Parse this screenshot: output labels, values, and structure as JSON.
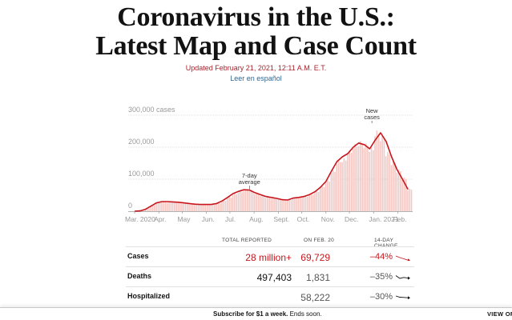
{
  "headline": {
    "line1": "Coronavirus in the U.S.:",
    "line2": "Latest Map and Case Count"
  },
  "updated": "Updated February 21, 2021, 12:11 A.M. E.T.",
  "spanish_link": "Leer en español",
  "colors": {
    "accent_red": "#c7161d",
    "bar_fill": "#f4c7c3",
    "link_blue": "#326891"
  },
  "chart_data": {
    "type": "bar",
    "title": "",
    "ylabel": "",
    "ylim": [
      0,
      300000
    ],
    "yticks": [
      "300,000 cases",
      "200,000",
      "100,000",
      "0"
    ],
    "ytick_values": [
      300000,
      200000,
      100000,
      0
    ],
    "xticks": [
      "Mar. 2020",
      "Apr.",
      "May",
      "Jun.",
      "Jul.",
      "Aug.",
      "Sept.",
      "Oct.",
      "Nov.",
      "Dec.",
      "Jan. 2021",
      "Feb."
    ],
    "grid": true,
    "annotations": [
      {
        "text_lines": [
          "7-day",
          "average"
        ],
        "at": "Jul. 2020"
      },
      {
        "text_lines": [
          "New",
          "cases"
        ],
        "at": "Jan. 2021"
      }
    ],
    "series": [
      {
        "kind": "daily bars",
        "weeks": [
          "2020-03-01",
          "2020-03-08",
          "2020-03-15",
          "2020-03-22",
          "2020-03-29",
          "2020-04-05",
          "2020-04-12",
          "2020-04-19",
          "2020-04-26",
          "2020-05-03",
          "2020-05-10",
          "2020-05-17",
          "2020-05-24",
          "2020-05-31",
          "2020-06-07",
          "2020-06-14",
          "2020-06-21",
          "2020-06-28",
          "2020-07-05",
          "2020-07-12",
          "2020-07-19",
          "2020-07-26",
          "2020-08-02",
          "2020-08-09",
          "2020-08-16",
          "2020-08-23",
          "2020-08-30",
          "2020-09-06",
          "2020-09-13",
          "2020-09-20",
          "2020-09-27",
          "2020-10-04",
          "2020-10-11",
          "2020-10-18",
          "2020-10-25",
          "2020-11-01",
          "2020-11-08",
          "2020-11-15",
          "2020-11-22",
          "2020-11-29",
          "2020-12-06",
          "2020-12-13",
          "2020-12-20",
          "2020-12-27",
          "2021-01-03",
          "2021-01-10",
          "2021-01-17",
          "2021-01-24",
          "2021-01-31",
          "2021-02-07",
          "2021-02-14"
        ],
        "values": [
          100,
          1500,
          9000,
          20000,
          30000,
          31000,
          29000,
          30000,
          29000,
          27000,
          24000,
          23000,
          21000,
          22000,
          21000,
          26000,
          34000,
          44000,
          55000,
          62000,
          68000,
          67000,
          58000,
          52000,
          45000,
          42000,
          41000,
          37000,
          36000,
          42000,
          44000,
          47000,
          54000,
          63000,
          78000,
          96000,
          128000,
          160000,
          165000,
          190000,
          210000,
          219000,
          212000,
          199000,
          252000,
          235000,
          185000,
          155000,
          130000,
          105000,
          70000
        ]
      },
      {
        "kind": "7-day average",
        "weeks": [
          "2020-03-01",
          "2020-03-08",
          "2020-03-15",
          "2020-03-22",
          "2020-03-29",
          "2020-04-05",
          "2020-04-12",
          "2020-04-19",
          "2020-04-26",
          "2020-05-03",
          "2020-05-10",
          "2020-05-17",
          "2020-05-24",
          "2020-05-31",
          "2020-06-07",
          "2020-06-14",
          "2020-06-21",
          "2020-06-28",
          "2020-07-05",
          "2020-07-12",
          "2020-07-19",
          "2020-07-26",
          "2020-08-02",
          "2020-08-09",
          "2020-08-16",
          "2020-08-23",
          "2020-08-30",
          "2020-09-06",
          "2020-09-13",
          "2020-09-20",
          "2020-09-27",
          "2020-10-04",
          "2020-10-11",
          "2020-10-18",
          "2020-10-25",
          "2020-11-01",
          "2020-11-08",
          "2020-11-15",
          "2020-11-22",
          "2020-11-29",
          "2020-12-06",
          "2020-12-13",
          "2020-12-20",
          "2020-12-27",
          "2021-01-03",
          "2021-01-10",
          "2021-01-17",
          "2021-01-24",
          "2021-01-31",
          "2021-02-07",
          "2021-02-14"
        ],
        "values": [
          100,
          1000,
          6000,
          16000,
          26000,
          30000,
          30000,
          29000,
          28000,
          26000,
          24000,
          22000,
          21000,
          21000,
          21000,
          24000,
          32000,
          43000,
          55000,
          62000,
          67000,
          66000,
          58000,
          52000,
          46000,
          43000,
          40000,
          36000,
          35000,
          41000,
          43000,
          46000,
          52000,
          61000,
          75000,
          93000,
          125000,
          155000,
          170000,
          180000,
          200000,
          213000,
          208000,
          195000,
          222000,
          245000,
          218000,
          170000,
          130000,
          100000,
          68000
        ]
      }
    ]
  },
  "table": {
    "headers": {
      "total": "TOTAL REPORTED",
      "onday": "ON FEB. 20",
      "change": "14-DAY CHANGE"
    },
    "rows": [
      {
        "label": "Cases",
        "total": "28 million+",
        "onday": "69,729",
        "change": "–44%",
        "trend": [
          0.4,
          0.6,
          0.75,
          0.92
        ]
      },
      {
        "label": "Deaths",
        "total": "497,403",
        "onday": "1,831",
        "change": "–35%",
        "trend": [
          0.35,
          0.7,
          0.58,
          0.66
        ]
      },
      {
        "label": "Hospitalized",
        "total": "",
        "onday": "58,222",
        "change": "–30%",
        "trend": [
          0.4,
          0.55,
          0.58,
          0.62
        ]
      }
    ]
  },
  "bottom_bar": {
    "subscribe_bold": "Subscribe for $1 a week.",
    "subscribe_rest": " Ends soon.",
    "view_offer": "VIEW OFFER"
  }
}
